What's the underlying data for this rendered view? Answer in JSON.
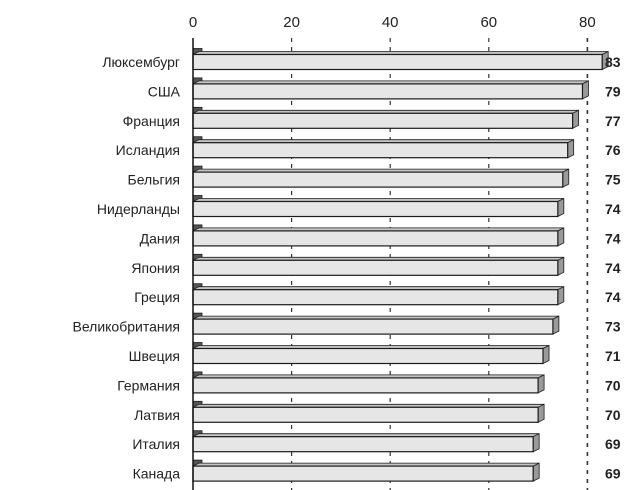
{
  "chart_data": {
    "type": "bar",
    "orientation": "horizontal",
    "categories": [
      "Люксембург",
      "США",
      "Франция",
      "Исландия",
      "Бельгия",
      "Нидерланды",
      "Дания",
      "Япония",
      "Греция",
      "Великобритания",
      "Швеция",
      "Германия",
      "Латвия",
      "Италия",
      "Канада"
    ],
    "values": [
      83,
      79,
      77,
      76,
      75,
      74,
      74,
      74,
      74,
      73,
      71,
      70,
      70,
      69,
      69
    ],
    "value_labels": [
      "83",
      "79",
      "77",
      "76",
      "75",
      "74",
      "74",
      "74",
      "74",
      "73",
      "71",
      "70",
      "70",
      "69",
      "69"
    ],
    "xticks": [
      0,
      20,
      40,
      60,
      80
    ],
    "xtick_labels": [
      "0",
      "20",
      "40",
      "60",
      "80"
    ],
    "xlim": [
      0,
      85
    ],
    "title": "",
    "xlabel": "",
    "ylabel": "",
    "grid": "vertical dashed",
    "legend": "none",
    "colors": {
      "bar_face": "#e6e6e6",
      "bar_top": "#c4c4c4",
      "bar_end": "#9a9a9a",
      "bar_edge": "#1c1c1c",
      "axis": "#111111",
      "grid": "#333333",
      "stub": "#555555"
    }
  }
}
